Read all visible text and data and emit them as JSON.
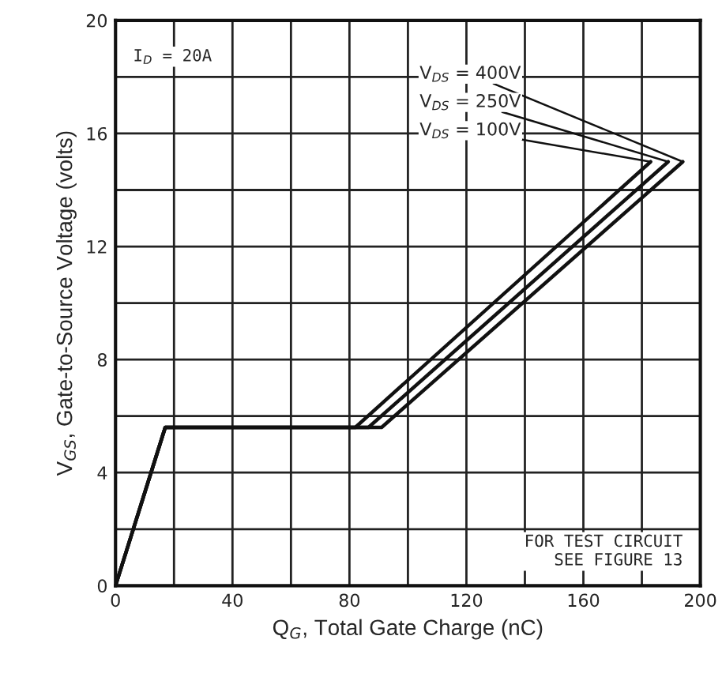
{
  "chart_data": {
    "type": "line",
    "xlabel": "Q$_{G}$, Total Gate Charge (nC)",
    "ylabel": "V$_{GS}$, Gate-to-Source Voltage (volts)",
    "series": [
      {
        "name": "V$_{DS}$ = 400V",
        "color": "#111111",
        "x": [
          0,
          17,
          91,
          194
        ],
        "values": [
          0,
          5.6,
          5.6,
          15
        ]
      },
      {
        "name": "V$_{DS}$ = 250V",
        "color": "#111111",
        "x": [
          0,
          17,
          86.5,
          189
        ],
        "values": [
          0,
          5.6,
          5.6,
          15
        ]
      },
      {
        "name": "V$_{DS}$ = 100V",
        "color": "#111111",
        "x": [
          0,
          17,
          82,
          183
        ],
        "values": [
          0,
          5.6,
          5.6,
          15
        ]
      }
    ],
    "xlim": [
      0,
      200
    ],
    "ylim": [
      0,
      20
    ],
    "xticks": [
      0,
      {
        "value": 20,
        "label": null
      },
      40,
      {
        "value": 60,
        "label": null
      },
      80,
      {
        "value": 100,
        "label": null
      },
      120,
      {
        "value": 140,
        "label": null
      },
      160,
      {
        "value": 180,
        "label": null
      },
      200
    ],
    "yticks": [
      0,
      {
        "value": 2,
        "label": null
      },
      4,
      {
        "value": 6,
        "label": null
      },
      8,
      {
        "value": 10,
        "label": null
      },
      12,
      {
        "value": 14,
        "label": null
      },
      16,
      {
        "value": 18,
        "label": null
      },
      20
    ],
    "grid": true,
    "marker": "none",
    "line_style": "solid",
    "annotations": [
      "I$_{D}$ = 20A",
      "FOR TEST CIRCUIT\nSEE FIGURE 13"
    ]
  }
}
